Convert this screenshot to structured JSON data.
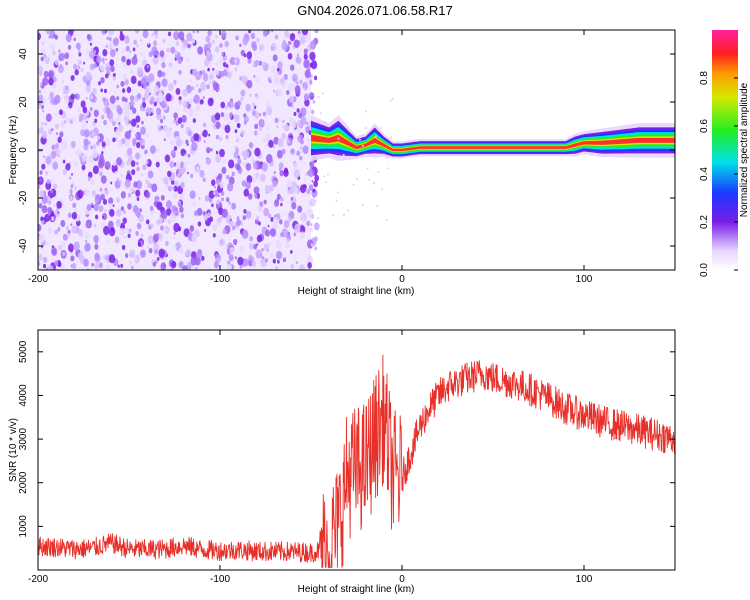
{
  "chart_data": [
    {
      "type": "heatmap",
      "title": "GN04.2026.071.06.58.R17",
      "xlabel": "Height of straight line (km)",
      "ylabel": "Frequency (Hz)",
      "xlim": [
        -200,
        150
      ],
      "ylim": [
        -50,
        50
      ],
      "xticks": [
        -200,
        -100,
        0,
        100
      ],
      "xtick_labels": [
        "-200",
        "-100",
        "0",
        "100"
      ],
      "yticks": [
        -40,
        -20,
        0,
        20,
        40
      ],
      "ytick_labels": [
        "-40",
        "-20",
        "0",
        "20",
        "40"
      ],
      "noise_region_km": [
        -200,
        -50
      ],
      "ridge": {
        "x": [
          -50,
          -40,
          -35,
          -30,
          -25,
          -20,
          -15,
          -10,
          -5,
          0,
          10,
          20,
          40,
          60,
          80,
          90,
          95,
          100,
          110,
          130,
          150
        ],
        "freq": [
          5,
          4,
          5,
          3,
          1,
          2,
          4,
          2,
          0,
          0,
          1,
          1,
          1,
          1,
          1,
          1,
          2,
          3,
          3,
          4,
          4
        ],
        "halfwidth": [
          4,
          3,
          4,
          3,
          2,
          2,
          3,
          2,
          1.5,
          1.5,
          1.5,
          1.5,
          1.5,
          1.5,
          1.5,
          1.5,
          2,
          2,
          2.5,
          3,
          3
        ]
      },
      "colorbar": {
        "label": "Normalized spectral amplitude",
        "range": [
          0,
          1
        ],
        "ticks": [
          0.0,
          0.2,
          0.4,
          0.6,
          0.8
        ],
        "tick_labels": [
          "0.0",
          "0.2",
          "0.4",
          "0.6",
          "0.8"
        ]
      }
    },
    {
      "type": "line",
      "xlabel": "Height of straight line (km)",
      "ylabel": "SNR (10 * v/v)",
      "xlim": [
        -200,
        150
      ],
      "ylim": [
        0,
        5500
      ],
      "xticks": [
        -200,
        -100,
        0,
        100
      ],
      "xtick_labels": [
        "-200",
        "-100",
        "0",
        "100"
      ],
      "yticks": [
        1000,
        2000,
        3000,
        4000,
        5000
      ],
      "ytick_labels": [
        "1000",
        "2000",
        "3000",
        "4000",
        "5000"
      ],
      "color": "#e8302a",
      "series": [
        {
          "name": "SNR",
          "x": [
            -200,
            -190,
            -180,
            -170,
            -160,
            -150,
            -140,
            -130,
            -120,
            -110,
            -100,
            -90,
            -80,
            -70,
            -60,
            -50,
            -40,
            -35,
            -30,
            -25,
            -20,
            -15,
            -10,
            -5,
            0,
            5,
            10,
            15,
            20,
            25,
            30,
            40,
            45,
            50,
            60,
            70,
            80,
            90,
            100,
            110,
            120,
            130,
            140,
            150
          ],
          "y": [
            550,
            520,
            480,
            500,
            620,
            480,
            470,
            480,
            560,
            470,
            440,
            460,
            430,
            420,
            420,
            400,
            500,
            1000,
            2200,
            2300,
            2400,
            3000,
            3500,
            2200,
            2100,
            2700,
            3300,
            3700,
            4000,
            4200,
            4300,
            4450,
            4500,
            4400,
            4300,
            4150,
            3950,
            3700,
            3550,
            3400,
            3300,
            3200,
            3100,
            3000
          ]
        }
      ]
    }
  ]
}
